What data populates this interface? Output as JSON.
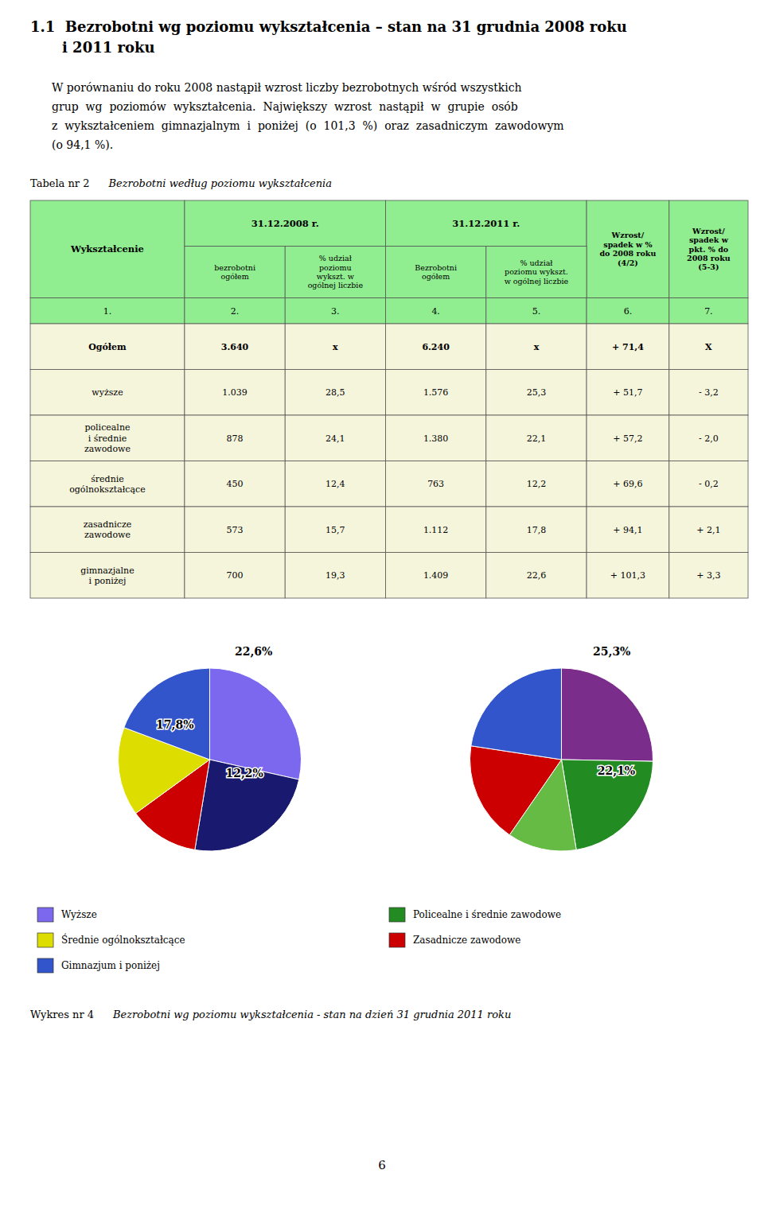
{
  "title_lines": [
    "1.1  Bezrobotni wg poziomu wykształcenia – stan na 31 grudnia 2008 roku",
    "i 2011 roku"
  ],
  "paragraph_lines": [
    "W porównaniu do roku 2008 nastąpił wzrost liczby bezrobotnych wśród wszystkich",
    "grup  wg  poziomów  wykształcenia.  Największy  wzrost  nastąpił  w  grupie  osób",
    "z  wykształceniem  gimnazjalnym  i  poniżej  (o  101,3  %)  oraz  zasadniczym  zawodowym",
    "(o 94,1 %)."
  ],
  "table_title": {
    "number": "Tabela nr 2",
    "text": "Bezrobotni według poziomu wykształcenia"
  },
  "table": {
    "header_bg": "#90EE90",
    "data_bg": "#F5F5DC",
    "header": [
      "Wykształcenie",
      "31.12.2008 r.",
      "31.12.2011 r.",
      "Wzrost/\nspadek w %\ndo 2008 roku\n(4/2)",
      "Wzrost/\nspadek w\npkt. % do\n2008 roku\n(5-3)"
    ],
    "subheaders": [
      "bezrobotni\nogółem",
      "% udział\npoziomu\nwykszt. w\nogólnej liczbie",
      "Bezrobotni\nogółem",
      "% udział\npoziomu wykszt.\nw ogólnej liczbie"
    ],
    "column_numbers": [
      "1.",
      "2.",
      "3.",
      "4.",
      "5.",
      "6.",
      "7."
    ],
    "rows": [
      {
        "label": "Ogółem",
        "v2008": "3.640",
        "pct2008": "x",
        "v2011": "6.240",
        "pct2011": "x",
        "wzrost": "+ 71,4",
        "spadek": "X",
        "bold": true
      },
      {
        "label": "wyższe",
        "v2008": "1.039",
        "pct2008": "28,5",
        "v2011": "1.576",
        "pct2011": "25,3",
        "wzrost": "+ 51,7",
        "spadek": "- 3,2",
        "bold": false
      },
      {
        "label": "policealne\ni średnie\nzawodowe",
        "v2008": "878",
        "pct2008": "24,1",
        "v2011": "1.380",
        "pct2011": "22,1",
        "wzrost": "+ 57,2",
        "spadek": "- 2,0",
        "bold": false
      },
      {
        "label": "średnie\nogólnokształcące",
        "v2008": "450",
        "pct2008": "12,4",
        "v2011": "763",
        "pct2011": "12,2",
        "wzrost": "+ 69,6",
        "spadek": "- 0,2",
        "bold": false
      },
      {
        "label": "zasadnicze\nzawodowe",
        "v2008": "573",
        "pct2008": "15,7",
        "v2011": "1.112",
        "pct2011": "17,8",
        "wzrost": "+ 94,1",
        "spadek": "+ 2,1",
        "bold": false
      },
      {
        "label": "gimnazjalne\ni poniżej",
        "v2008": "700",
        "pct2008": "19,3",
        "v2011": "1.409",
        "pct2011": "22,6",
        "wzrost": "+ 101,3",
        "spadek": "+ 3,3",
        "bold": false
      }
    ]
  },
  "chart_data": [
    {
      "type": "pie",
      "values": [
        28.5,
        24.1,
        12.4,
        15.7,
        19.3
      ],
      "colors": [
        "#7B68EE",
        "#191970",
        "#CC0000",
        "#DDDD00",
        "#3355CC"
      ],
      "annotations": [
        "22,6%",
        "17,8%",
        "12,2%"
      ]
    },
    {
      "type": "pie",
      "values": [
        25.3,
        22.1,
        12.2,
        17.8,
        22.6
      ],
      "colors": [
        "#7B2D8B",
        "#228B22",
        "#66BB44",
        "#CC0000",
        "#3355CC"
      ],
      "annotations": [
        "25,3%",
        "22,1%"
      ]
    }
  ],
  "legend_left": [
    {
      "label": "Wyższe",
      "color": "#7B68EE"
    },
    {
      "label": "Średnie ogólnokształcące",
      "color": "#DDDD00"
    },
    {
      "label": "Gimnazjum i poniżej",
      "color": "#3355CC"
    }
  ],
  "legend_right": [
    {
      "label": "Policealne i średnie zawodowe",
      "color": "#228B22"
    },
    {
      "label": "Zasadnicze zawodowe",
      "color": "#CC0000"
    }
  ],
  "chart_caption": {
    "number": "Wykres nr 4",
    "text": "Bezrobotni wg poziomu wykształcenia - stan na dzień 31 grudnia 2011 roku"
  },
  "page_number": "6",
  "background": "#FFFFFF"
}
